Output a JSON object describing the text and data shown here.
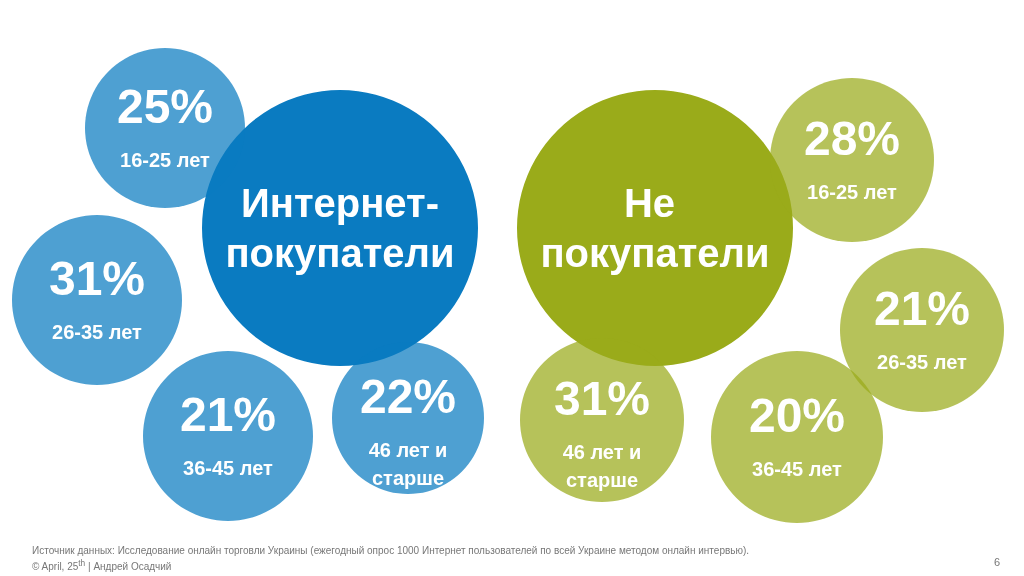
{
  "chart_data": {
    "type": "other",
    "categories": [
      "16-25 лет",
      "26-35 лет",
      "36-45 лет",
      "46 лет и старше"
    ],
    "series": [
      {
        "name": "Интернет-покупатели",
        "color": "#0a7bc1",
        "values": [
          25,
          31,
          21,
          22
        ],
        "value_labels": [
          "25%",
          "31%",
          "21%",
          "22%"
        ]
      },
      {
        "name": "Не покупатели",
        "color": "#9aab1a",
        "values": [
          28,
          21,
          20,
          31
        ],
        "value_labels": [
          "28%",
          "21%",
          "20%",
          "31%"
        ]
      }
    ],
    "annotations": [
      "Источник данных: Исследование онлайн торговли Украины (ежегодный опрос 1000 Интернет пользователей по всей Украине методом онлайн интервью).",
      "© April, 25$^{th}$ | Андрей Осадчий",
      "6"
    ]
  }
}
